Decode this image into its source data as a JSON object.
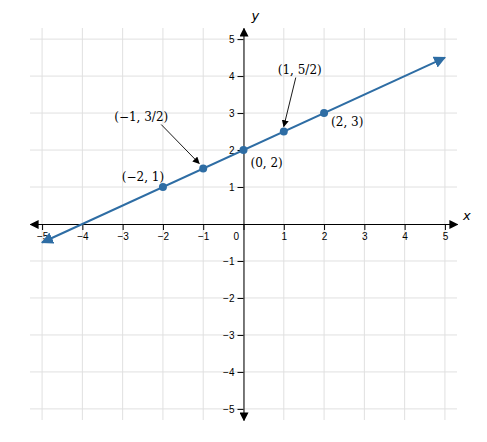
{
  "chart_data": {
    "type": "line",
    "x_label": "x",
    "y_label": "y",
    "xlim": [
      -5.3,
      5.3
    ],
    "ylim": [
      -5.3,
      5.3
    ],
    "xticks": [
      {
        "value": -5,
        "label": "−5"
      },
      {
        "value": -4,
        "label": "−4"
      },
      {
        "value": -3,
        "label": "−3"
      },
      {
        "value": -2,
        "label": "−2"
      },
      {
        "value": -1,
        "label": "−1"
      },
      0,
      1,
      2,
      3,
      4,
      5
    ],
    "yticks": [
      {
        "value": -5,
        "label": "−5"
      },
      {
        "value": -4,
        "label": "−4"
      },
      {
        "value": -3,
        "label": "−3"
      },
      {
        "value": -2,
        "label": "−2"
      },
      {
        "value": -1,
        "label": "−1"
      },
      1,
      2,
      3,
      4,
      5
    ],
    "grid": true,
    "series": [
      {
        "type": "line",
        "color": "#2e6da4",
        "x": [
          -5,
          5
        ],
        "values": [
          -0.5,
          4.5
        ]
      },
      {
        "type": "scatter",
        "color": "#2e6da4",
        "x": [
          -2,
          -1,
          0,
          1,
          2
        ],
        "values": [
          1,
          1.5,
          2,
          2.5,
          3
        ]
      }
    ],
    "annotations": [
      {
        "text": "(−2, 1)"
      },
      {
        "text": "(−1, 3/2)"
      },
      {
        "text": "(0, 2)"
      },
      {
        "text": "(1, 5/2)"
      },
      {
        "text": "(2, 3)"
      }
    ]
  }
}
